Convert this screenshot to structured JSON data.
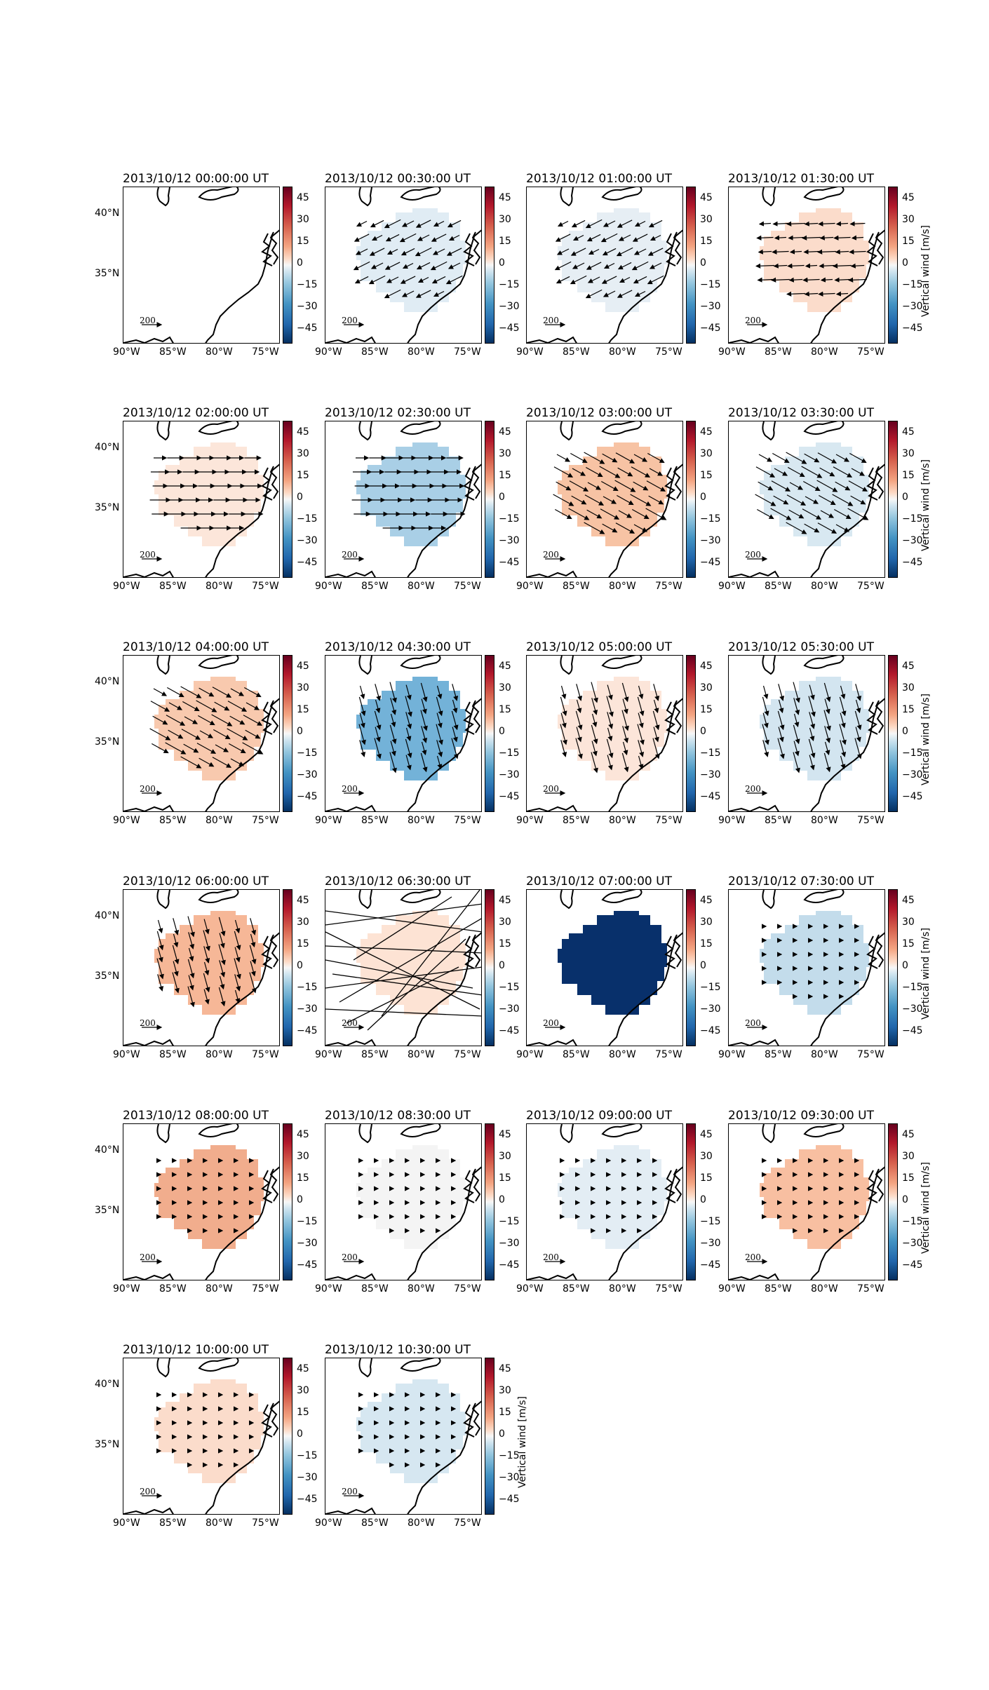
{
  "panels": [
    {
      "title": "2013/10/12 00:00:00 UT",
      "fill": "",
      "arrows": "none",
      "cbar_label": ""
    },
    {
      "title": "2013/10/12 00:30:00 UT",
      "fill": "#e0ecf4",
      "arrows": "sw",
      "cbar_label": ""
    },
    {
      "title": "2013/10/12 01:00:00 UT",
      "fill": "#e6eef4",
      "arrows": "sw",
      "cbar_label": ""
    },
    {
      "title": "2013/10/12 01:30:00 UT",
      "fill": "#fbdccb",
      "arrows": "w",
      "cbar_label": "Vertical wind [m/s]"
    },
    {
      "title": "2013/10/12 02:00:00 UT",
      "fill": "#fce6da",
      "arrows": "e",
      "cbar_label": ""
    },
    {
      "title": "2013/10/12 02:30:00 UT",
      "fill": "#a9cfe6",
      "arrows": "e",
      "cbar_label": ""
    },
    {
      "title": "2013/10/12 03:00:00 UT",
      "fill": "#f7c3a4",
      "arrows": "se",
      "cbar_label": ""
    },
    {
      "title": "2013/10/12 03:30:00 UT",
      "fill": "#d8e8f1",
      "arrows": "se",
      "cbar_label": "Vertical wind [m/s]"
    },
    {
      "title": "2013/10/12 04:00:00 UT",
      "fill": "#f8c9ae",
      "arrows": "se",
      "cbar_label": ""
    },
    {
      "title": "2013/10/12 04:30:00 UT",
      "fill": "#73b2d8",
      "arrows": "s",
      "cbar_label": ""
    },
    {
      "title": "2013/10/12 05:00:00 UT",
      "fill": "#fce5d9",
      "arrows": "s",
      "cbar_label": ""
    },
    {
      "title": "2013/10/12 05:30:00 UT",
      "fill": "#d3e5f0",
      "arrows": "s",
      "cbar_label": "Vertical wind [m/s]"
    },
    {
      "title": "2013/10/12 06:00:00 UT",
      "fill": "#f6b797",
      "arrows": "s",
      "cbar_label": ""
    },
    {
      "title": "2013/10/12 06:30:00 UT",
      "fill": "#fde3d4",
      "arrows": "chaos",
      "cbar_label": ""
    },
    {
      "title": "2013/10/12 07:00:00 UT",
      "fill": "#08306b",
      "arrows": "none",
      "cbar_label": ""
    },
    {
      "title": "2013/10/12 07:30:00 UT",
      "fill": "#c3dceb",
      "arrows": "dot",
      "cbar_label": "Vertical wind [m/s]"
    },
    {
      "title": "2013/10/12 08:00:00 UT",
      "fill": "#f1ad8d",
      "arrows": "dot",
      "cbar_label": ""
    },
    {
      "title": "2013/10/12 08:30:00 UT",
      "fill": "#f4f4f4",
      "arrows": "dot",
      "cbar_label": ""
    },
    {
      "title": "2013/10/12 09:00:00 UT",
      "fill": "#e3edf4",
      "arrows": "dot",
      "cbar_label": ""
    },
    {
      "title": "2013/10/12 09:30:00 UT",
      "fill": "#f8bfa1",
      "arrows": "dot",
      "cbar_label": "Vertical wind [m/s]"
    },
    {
      "title": "2013/10/12 10:00:00 UT",
      "fill": "#fbdccb",
      "arrows": "dot",
      "cbar_label": ""
    },
    {
      "title": "2013/10/12 10:30:00 UT",
      "fill": "#d6e7f1",
      "arrows": "dot",
      "cbar_label": "Vertical wind [m/s]"
    }
  ],
  "axes": {
    "lat_ticks": [
      "40°N",
      "35°N"
    ],
    "lon_ticks": [
      "90°W",
      "85°W",
      "80°W",
      "75°W"
    ],
    "cbar_ticks": [
      "45",
      "30",
      "15",
      "0",
      "−15",
      "−30",
      "−45"
    ],
    "scale_text": "200"
  }
}
